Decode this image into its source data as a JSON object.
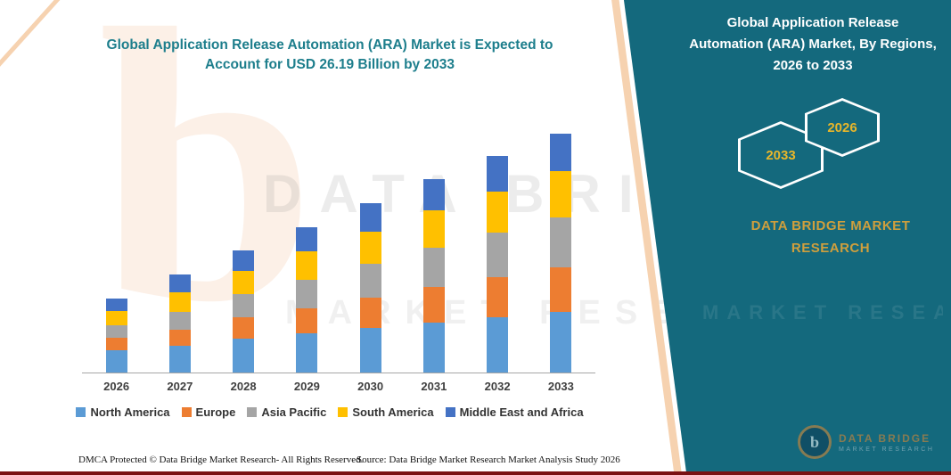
{
  "page": {
    "title_left": "Global Application Release Automation (ARA) Market is Expected to Account for USD 26.19 Billion by 2033",
    "footer_left": "DMCA Protected © Data Bridge Market Research-  All Rights Reserved.",
    "footer_source": "Source: Data Bridge Market Research  Market Analysis Study 2026"
  },
  "side_panel": {
    "title": "Global Application Release Automation (ARA) Market, By Regions, 2026 to 2033",
    "hexagons": [
      "2033",
      "2026"
    ],
    "brand_line1": "DATA BRIDGE MARKET",
    "brand_line2": "RESEARCH",
    "colors": {
      "panel": "#14697d",
      "hex_border": "#ffffff",
      "year_gold": "#e8b62a",
      "brand_gold": "#cf9f3d"
    }
  },
  "watermark": {
    "line1": "DATA BRIDGE",
    "line2": "MARKET RESEARCH",
    "logo_letter": "b"
  },
  "footer_logo": {
    "letter": "b",
    "name": "DATA BRIDGE",
    "sub": "MARKET RESEARCH"
  },
  "chart_data": {
    "type": "bar",
    "stacked": true,
    "title": "Global Application Release Automation (ARA) Market is Expected to Account for USD 26.19 Billion by 2033",
    "unit": "USD Billion",
    "categories": [
      "2026",
      "2027",
      "2028",
      "2029",
      "2030",
      "2031",
      "2032",
      "2033"
    ],
    "series": [
      {
        "name": "North America",
        "color": "#5B9BD5",
        "values": [
          2.44,
          2.93,
          3.71,
          4.3,
          4.89,
          5.47,
          6.06,
          6.64
        ]
      },
      {
        "name": "Europe",
        "color": "#ED7D31",
        "values": [
          1.37,
          1.76,
          2.34,
          2.74,
          3.32,
          3.91,
          4.4,
          4.89
        ]
      },
      {
        "name": "Asia Pacific",
        "color": "#A5A5A5",
        "values": [
          1.37,
          1.95,
          2.54,
          3.13,
          3.71,
          4.3,
          4.89,
          5.47
        ]
      },
      {
        "name": "South America",
        "color": "#FFC000",
        "values": [
          1.56,
          2.15,
          2.54,
          3.13,
          3.52,
          4.1,
          4.49,
          5.08
        ]
      },
      {
        "name": "Middle East and Africa",
        "color": "#4472C4",
        "values": [
          1.37,
          1.95,
          2.25,
          2.64,
          3.13,
          3.42,
          3.91,
          4.11
        ]
      }
    ],
    "totals": [
      8.11,
      10.74,
      13.38,
      15.94,
      18.57,
      21.2,
      23.75,
      26.19
    ],
    "ylim": [
      0,
      28
    ],
    "grid": false,
    "legend_position": "bottom",
    "xlabel": "",
    "ylabel": ""
  }
}
